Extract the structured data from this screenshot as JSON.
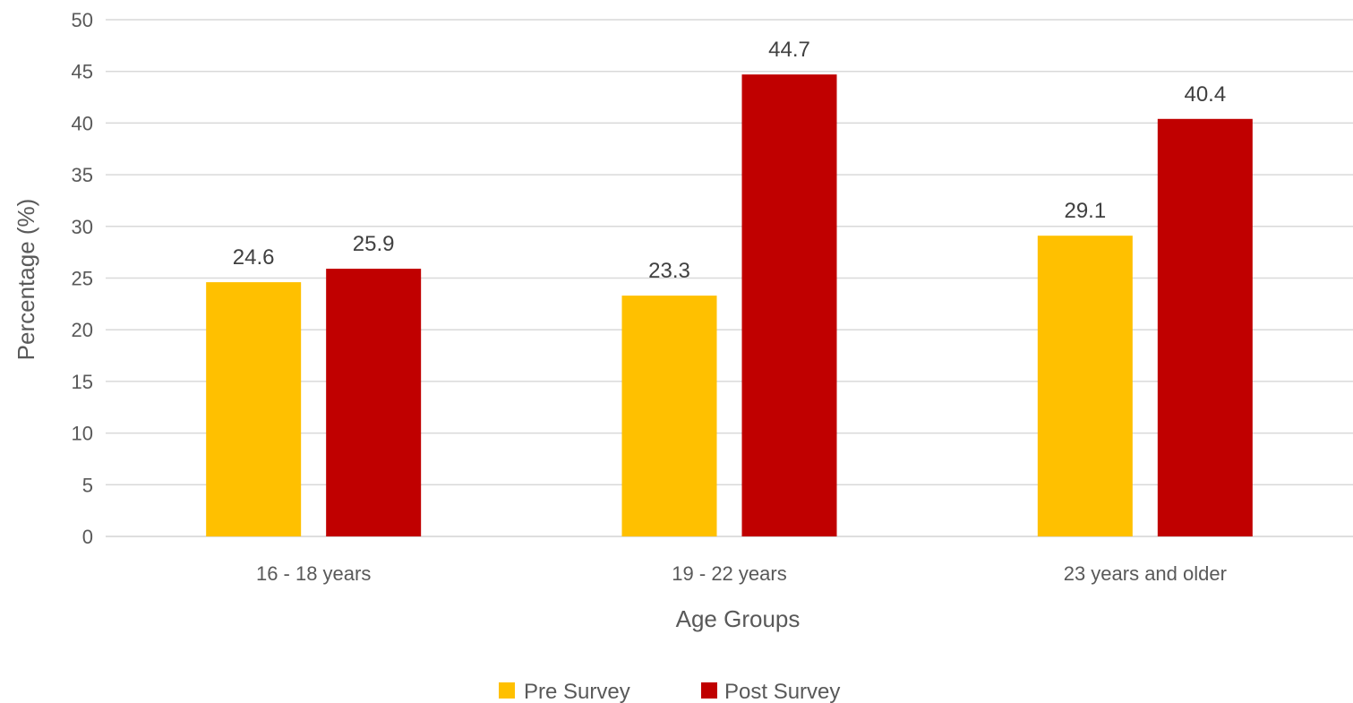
{
  "chart_data": {
    "type": "bar",
    "title": "",
    "xlabel": "Age Groups",
    "ylabel": "Percentage (%)",
    "categories": [
      "16 - 18 years",
      "19 - 22 years",
      "23 years and older"
    ],
    "series": [
      {
        "name": "Pre Survey",
        "values": [
          24.6,
          23.3,
          29.1
        ],
        "color": "#FFC000"
      },
      {
        "name": "Post Survey",
        "values": [
          25.9,
          44.7,
          40.4
        ],
        "color": "#C00000"
      }
    ],
    "ylim": [
      0,
      50
    ],
    "yticks": [
      0,
      5,
      10,
      15,
      20,
      25,
      30,
      35,
      40,
      45,
      50
    ],
    "grid": true,
    "legend_position": "bottom",
    "gridline_color": "#D9D9D9"
  }
}
